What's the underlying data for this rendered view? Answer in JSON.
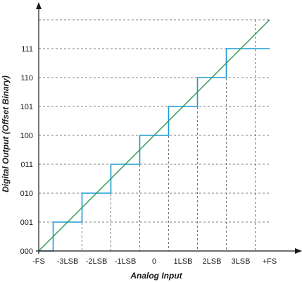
{
  "chart_data": {
    "type": "line",
    "xlabel": "Analog Input",
    "ylabel": "Digital Output (Offset Binary)",
    "x_ticks": [
      "-FS",
      "-3LSB",
      "-2LSB",
      "-1LSB",
      "0",
      "1LSB",
      "2LSB",
      "3LSB",
      "+FS"
    ],
    "y_ticks": [
      "000",
      "001",
      "010",
      "011",
      "100",
      "101",
      "110",
      "111"
    ],
    "grid": "dashed",
    "series": [
      {
        "key": "staircase",
        "color": "#1e9ad6",
        "values": [
          0,
          1,
          2,
          3,
          4,
          5,
          6,
          7
        ]
      },
      {
        "key": "ideal",
        "color": "#2e9a4e",
        "x": [
          0,
          8
        ],
        "y": [
          0,
          8
        ]
      }
    ]
  },
  "colors": {
    "axis": "#1a1a1a",
    "grid": "#555555",
    "staircase": "#1e9ad6",
    "ideal": "#2e9a4e"
  }
}
